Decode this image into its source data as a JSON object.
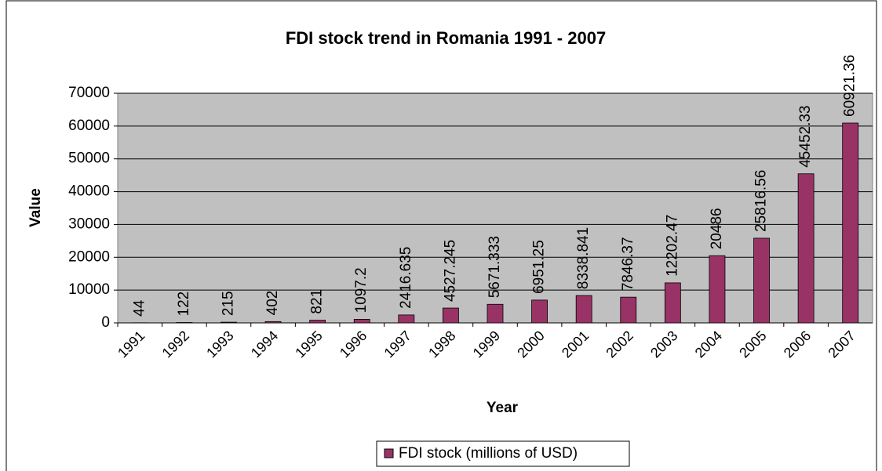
{
  "chart_data": {
    "type": "bar",
    "title": "FDI stock trend in Romania 1991 - 2007",
    "x_label": "Year",
    "y_label": "Value",
    "categories": [
      "1991",
      "1992",
      "1993",
      "1994",
      "1995",
      "1996",
      "1997",
      "1998",
      "1999",
      "2000",
      "2001",
      "2002",
      "2003",
      "2004",
      "2005",
      "2006",
      "2007"
    ],
    "series": [
      {
        "name": "FDI stock (millions of USD)",
        "color": "#993366",
        "values": [
          44,
          122,
          215,
          402,
          821,
          1097.2,
          2416.635,
          4527.245,
          5671.333,
          6951.25,
          8338.841,
          7846.37,
          12202.47,
          20486,
          25816.56,
          45452.33,
          60921.36
        ]
      }
    ],
    "ylim": [
      0,
      70000
    ],
    "yticks": [
      0,
      10000,
      20000,
      30000,
      40000,
      50000,
      60000,
      70000
    ],
    "grid": true,
    "legend": "bottom"
  }
}
